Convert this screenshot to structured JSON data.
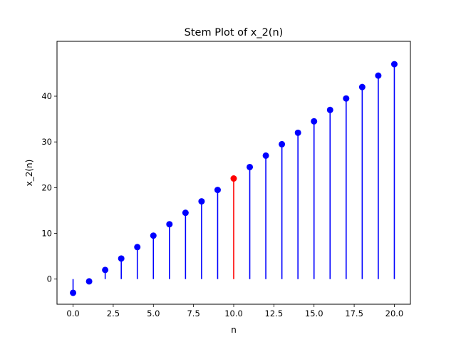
{
  "chart_data": {
    "type": "stem",
    "title": "Stem Plot of x_2(n)",
    "xlabel": "n",
    "ylabel": "x_2(n)",
    "xlim": [
      -1,
      21
    ],
    "ylim": [
      -5.5,
      52
    ],
    "grid": false,
    "baseline": 0,
    "x_ticks": [
      0.0,
      2.5,
      5.0,
      7.5,
      10.0,
      12.5,
      15.0,
      17.5,
      20.0
    ],
    "x_tick_labels": [
      "0.0",
      "2.5",
      "5.0",
      "7.5",
      "10.0",
      "12.5",
      "15.0",
      "17.5",
      "20.0"
    ],
    "y_ticks": [
      0,
      10,
      20,
      30,
      40
    ],
    "y_tick_labels": [
      "0",
      "10",
      "20",
      "30",
      "40"
    ],
    "series": [
      {
        "color": "#0000ff",
        "x": [
          0,
          1,
          2,
          3,
          4,
          5,
          6,
          7,
          8,
          9,
          11,
          12,
          13,
          14,
          15,
          16,
          17,
          18,
          19,
          20
        ],
        "values": [
          -3,
          -0.5,
          2,
          4.5,
          7,
          9.5,
          12,
          14.5,
          17,
          19.5,
          24.5,
          27,
          29.5,
          32,
          34.5,
          37,
          39.5,
          42,
          44.5,
          47
        ]
      },
      {
        "color": "#ff0000",
        "x": [
          10
        ],
        "values": [
          22
        ]
      }
    ]
  }
}
